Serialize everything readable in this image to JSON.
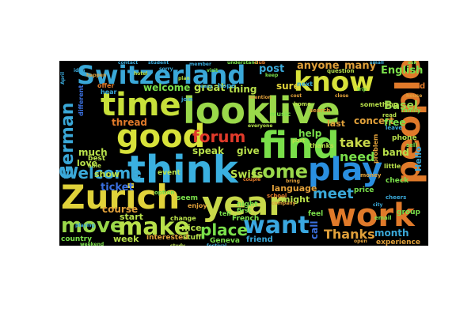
{
  "words": {
    "switzerland": {
      "text": "Switzerland",
      "color": "#3aa8d8"
    },
    "know": {
      "text": "know",
      "color": "#d8e23a"
    },
    "time": {
      "text": "time",
      "color": "#c8e03a"
    },
    "look": {
      "text": "look",
      "color": "#9ad84a"
    },
    "live": {
      "text": "live",
      "color": "#9ad84a"
    },
    "people": {
      "text": "people",
      "color": "#e07a2a"
    },
    "good": {
      "text": "good",
      "color": "#d8e23a"
    },
    "find": {
      "text": "find",
      "color": "#7adf4a"
    },
    "think": {
      "text": "think",
      "color": "#3ab0e0"
    },
    "play": {
      "text": "play",
      "color": "#2a8fe0"
    },
    "zurich": {
      "text": "Zurich",
      "color": "#e0d23a"
    },
    "year": {
      "text": "year",
      "color": "#c8d84a"
    },
    "work": {
      "text": "work",
      "color": "#e07a2a"
    },
    "move": {
      "text": "move",
      "color": "#9ad84a"
    },
    "make": {
      "text": "make",
      "color": "#b8e04a"
    },
    "want": {
      "text": "want",
      "color": "#3aa8e0"
    },
    "forum": {
      "text": "forum",
      "color": "#e03a2a"
    },
    "welcome_big": {
      "text": "Welcome",
      "color": "#3aa8d8"
    },
    "come": {
      "text": "come",
      "color": "#9ad84a"
    },
    "german": {
      "text": "German",
      "color": "#3aa8d8"
    },
    "thanks": {
      "text": "Thanks",
      "color": "#e0a03a"
    },
    "place": {
      "text": "place",
      "color": "#7adf4a"
    },
    "meet": {
      "text": "meet",
      "color": "#3aa8d8"
    },
    "need": {
      "text": "need",
      "color": "#7adf4a"
    },
    "take": {
      "text": "take",
      "color": "#c8d84a"
    },
    "post": {
      "text": "post",
      "color": "#3aa8d8"
    },
    "anyone": {
      "text": "anyone",
      "color": "#e0a03a"
    },
    "many": {
      "text": "many",
      "color": "#e0a03a"
    },
    "english": {
      "text": "English",
      "color": "#7adf4a"
    },
    "welcome_small": {
      "text": "welcome",
      "color": "#7adf4a"
    },
    "great": {
      "text": "great",
      "color": "#b8e04a"
    },
    "thing": {
      "text": "thing",
      "color": "#b8e04a"
    },
    "sure": {
      "text": "sure",
      "color": "#e0d23a"
    },
    "basel": {
      "text": "Basel",
      "color": "#9ad84a"
    },
    "concert": {
      "text": "concert",
      "color": "#e0a03a"
    },
    "last": {
      "text": "last",
      "color": "#e0a03a"
    },
    "thread": {
      "text": "thread",
      "color": "#e07a2a"
    },
    "speak": {
      "text": "speak",
      "color": "#b8e04a"
    },
    "give": {
      "text": "give",
      "color": "#b8e04a"
    },
    "help": {
      "text": "help",
      "color": "#7adf4a"
    },
    "ticket": {
      "text": "ticket",
      "color": "#3a70e0"
    },
    "swiss": {
      "text": "Swiss",
      "color": "#b8e04a"
    },
    "language": {
      "text": "language",
      "color": "#e0a03a"
    },
    "much": {
      "text": "much",
      "color": "#b8e04a"
    },
    "love": {
      "text": "love",
      "color": "#b8e04a"
    },
    "show": {
      "text": "show",
      "color": "#b8e04a"
    },
    "course": {
      "text": "course",
      "color": "#e0a03a"
    },
    "start": {
      "text": "start",
      "color": "#b8e04a"
    },
    "nice": {
      "text": "nice",
      "color": "#b8e04a"
    },
    "week": {
      "text": "week",
      "color": "#b8e04a"
    },
    "interested": {
      "text": "interested",
      "color": "#e0a03a"
    },
    "might": {
      "text": "might",
      "color": "#b8e04a"
    },
    "friend": {
      "text": "friend",
      "color": "#3aa8d8"
    },
    "month": {
      "text": "month",
      "color": "#3aa8d8"
    },
    "free": {
      "text": "free",
      "color": "#7adf4a"
    },
    "band": {
      "text": "band",
      "color": "#b8e04a"
    },
    "call": {
      "text": "call",
      "color": "#3a70e0"
    },
    "hello": {
      "text": "Hello",
      "color": "#3aa8d8"
    },
    "french": {
      "text": "French",
      "color": "#7adf4a"
    },
    "night": {
      "text": "night",
      "color": "#7adf4a"
    },
    "country": {
      "text": "country",
      "color": "#7adf4a"
    },
    "experience": {
      "text": "experience",
      "color": "#e0a03a"
    },
    "geneva": {
      "text": "Geneva",
      "color": "#7adf4a"
    },
    "phone": {
      "text": "phone",
      "color": "#b8e04a"
    },
    "sound": {
      "text": "sound",
      "color": "#e07a2a"
    },
    "best": {
      "text": "best",
      "color": "#b8e04a"
    },
    "event": {
      "text": "event",
      "color": "#b8e04a"
    },
    "check": {
      "text": "check",
      "color": "#7adf4a"
    },
    "price": {
      "text": "price",
      "color": "#7adf4a"
    },
    "group": {
      "text": "group",
      "color": "#7adf4a"
    },
    "seem": {
      "text": "seem",
      "color": "#7adf4a"
    },
    "stuff": {
      "text": "stuff",
      "color": "#b8e04a"
    },
    "feel": {
      "text": "feel",
      "color": "#7adf4a"
    },
    "hope": {
      "text": "hope",
      "color": "#3aa8d8"
    },
    "hear": {
      "text": "hear",
      "color": "#3aa8d8"
    },
    "next": {
      "text": "next",
      "color": "#3aa8d8"
    },
    "different": {
      "text": "different",
      "color": "#3a70e0"
    },
    "problem": {
      "text": "problem",
      "color": "#e0a03a"
    },
    "something": {
      "text": "something",
      "color": "#b8e04a"
    },
    "question": {
      "text": "question",
      "color": "#b8e04a"
    },
    "offer": {
      "text": "offer",
      "color": "#e07a2a"
    },
    "music": {
      "text": "music",
      "color": "#7adf4a"
    },
    "enjoy": {
      "text": "enjoy",
      "color": "#e0a03a"
    },
    "little": {
      "text": "little",
      "color": "#b8e04a"
    },
    "first": {
      "text": "first",
      "color": "#7adf4a"
    },
    "tell": {
      "text": "tell",
      "color": "#7adf4a"
    },
    "thanks_small": {
      "text": "thanks",
      "color": "#b8e04a"
    },
    "change": {
      "text": "change",
      "color": "#b8e04a"
    },
    "able": {
      "text": "able",
      "color": "#b8e04a"
    },
    "contact": {
      "text": "contact",
      "color": "#3aa8d8"
    },
    "april": {
      "text": "April",
      "color": "#3aa8d8"
    },
    "home": {
      "text": "home",
      "color": "#b8e04a"
    },
    "family": {
      "text": "family",
      "color": "#7adf4a"
    },
    "read": {
      "text": "read",
      "color": "#b8e04a"
    },
    "leave": {
      "text": "leave",
      "color": "#3aa8d8"
    },
    "sell": {
      "text": "sell",
      "color": "#7adf4a"
    },
    "money": {
      "text": "money",
      "color": "#e0a03a"
    },
    "cheers": {
      "text": "cheers",
      "color": "#3aa8d8"
    },
    "email": {
      "text": "email",
      "color": "#7adf4a"
    },
    "search": {
      "text": "search",
      "color": "#e0a03a"
    },
    "happen": {
      "text": "happen",
      "color": "#e0a03a"
    },
    "idea": {
      "text": "idea",
      "color": "#3aa8d8"
    },
    "mention": {
      "text": "mention",
      "color": "#e0a03a"
    },
    "school": {
      "text": "school",
      "color": "#e07a2a"
    },
    "option": {
      "text": "option",
      "color": "#7adf4a"
    },
    "join": {
      "text": "join",
      "color": "#3aa8d8"
    },
    "easy": {
      "text": "easy",
      "color": "#3aa8d8"
    },
    "part": {
      "text": "part",
      "color": "#b8e04a"
    },
    "bring": {
      "text": "bring",
      "color": "#e0a03a"
    },
    "couple": {
      "text": "couple",
      "color": "#e07a2a"
    },
    "festival": {
      "text": "festival",
      "color": "#3aa8d8"
    },
    "company": {
      "text": "company",
      "color": "#e0a03a"
    },
    "understand": {
      "text": "understand",
      "color": "#7adf4a"
    },
    "everyone": {
      "text": "everyone",
      "color": "#b8e04a"
    },
    "keep": {
      "text": "keep",
      "color": "#7adf4a"
    },
    "city": {
      "text": "city",
      "color": "#3aa8d8"
    },
    "plan": {
      "text": "plan",
      "color": "#b8e04a"
    },
    "sorry": {
      "text": "sorry",
      "color": "#3aa8d8"
    },
    "visit": {
      "text": "visit",
      "color": "#7adf4a"
    },
    "member": {
      "text": "member",
      "color": "#3aa8d8"
    },
    "close": {
      "text": "close",
      "color": "#e0a03a"
    },
    "cost": {
      "text": "cost",
      "color": "#e0a03a"
    },
    "trip": {
      "text": "trip",
      "color": "#7adf4a"
    },
    "hotel": {
      "text": "hotel",
      "color": "#b8e04a"
    },
    "student": {
      "text": "student",
      "color": "#3aa8d8"
    },
    "club": {
      "text": "club",
      "color": "#e07a2a"
    },
    "study": {
      "text": "study",
      "color": "#b8e04a"
    },
    "house": {
      "text": "house",
      "color": "#e0a03a"
    },
    "ask": {
      "text": "ask",
      "color": "#7adf4a"
    },
    "small": {
      "text": "small",
      "color": "#3aa8d8"
    },
    "open": {
      "text": "open",
      "color": "#e0a03a"
    },
    "play_small": {
      "text": "playing",
      "color": "#3aa8d8"
    },
    "weekend": {
      "text": "weekend",
      "color": "#7adf4a"
    }
  }
}
